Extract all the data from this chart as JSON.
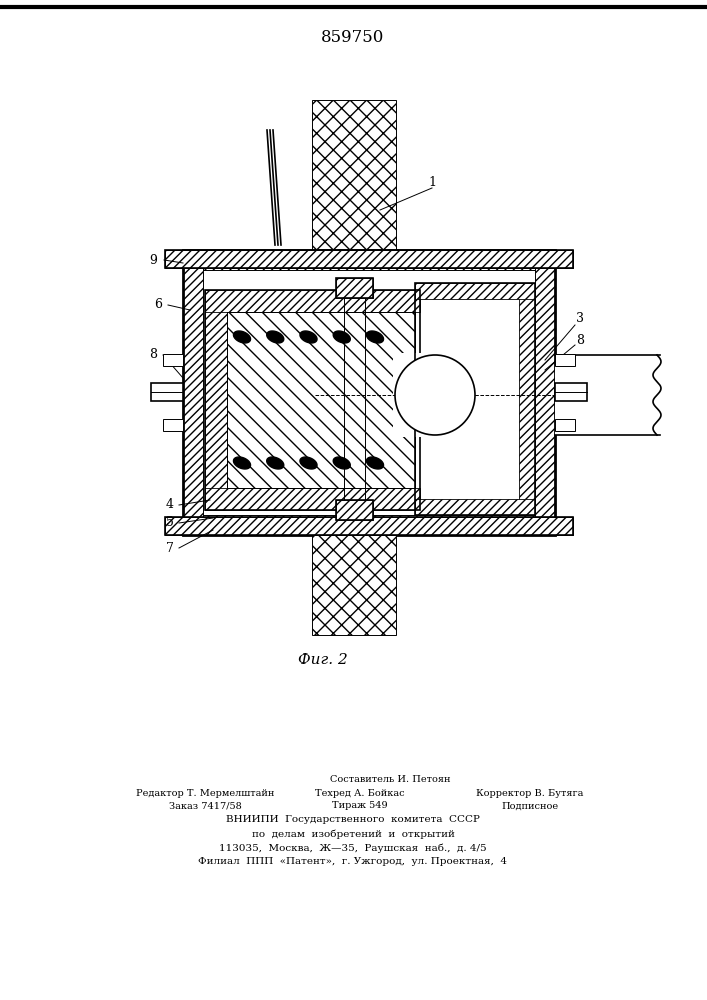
{
  "title": "859750",
  "fig_label": "Фиг. 2",
  "background_color": "#ffffff",
  "line_color": "#000000",
  "footer": {
    "line1": "Составитель И. Петоян",
    "line2l": "Редактор Т. Мермелштайн",
    "line2m": "Техред А. Бойкас",
    "line2r": "Корректор В. Бутяга",
    "line3l": "Заказ 7417/58",
    "line3m": "Тираж 549",
    "line3r": "Подписное",
    "line4": "ВНИИПИ  Государственного  комитета  СССР",
    "line5": "по  делам  изобретений  и  открытий",
    "line6": "113035,  Москва,  Ж—35,  Раушская  наб.,  д. 4/5",
    "line7": "Филиал  ППП  «Патент»,  г. Ужгород,  ул. Проектная,  4"
  }
}
